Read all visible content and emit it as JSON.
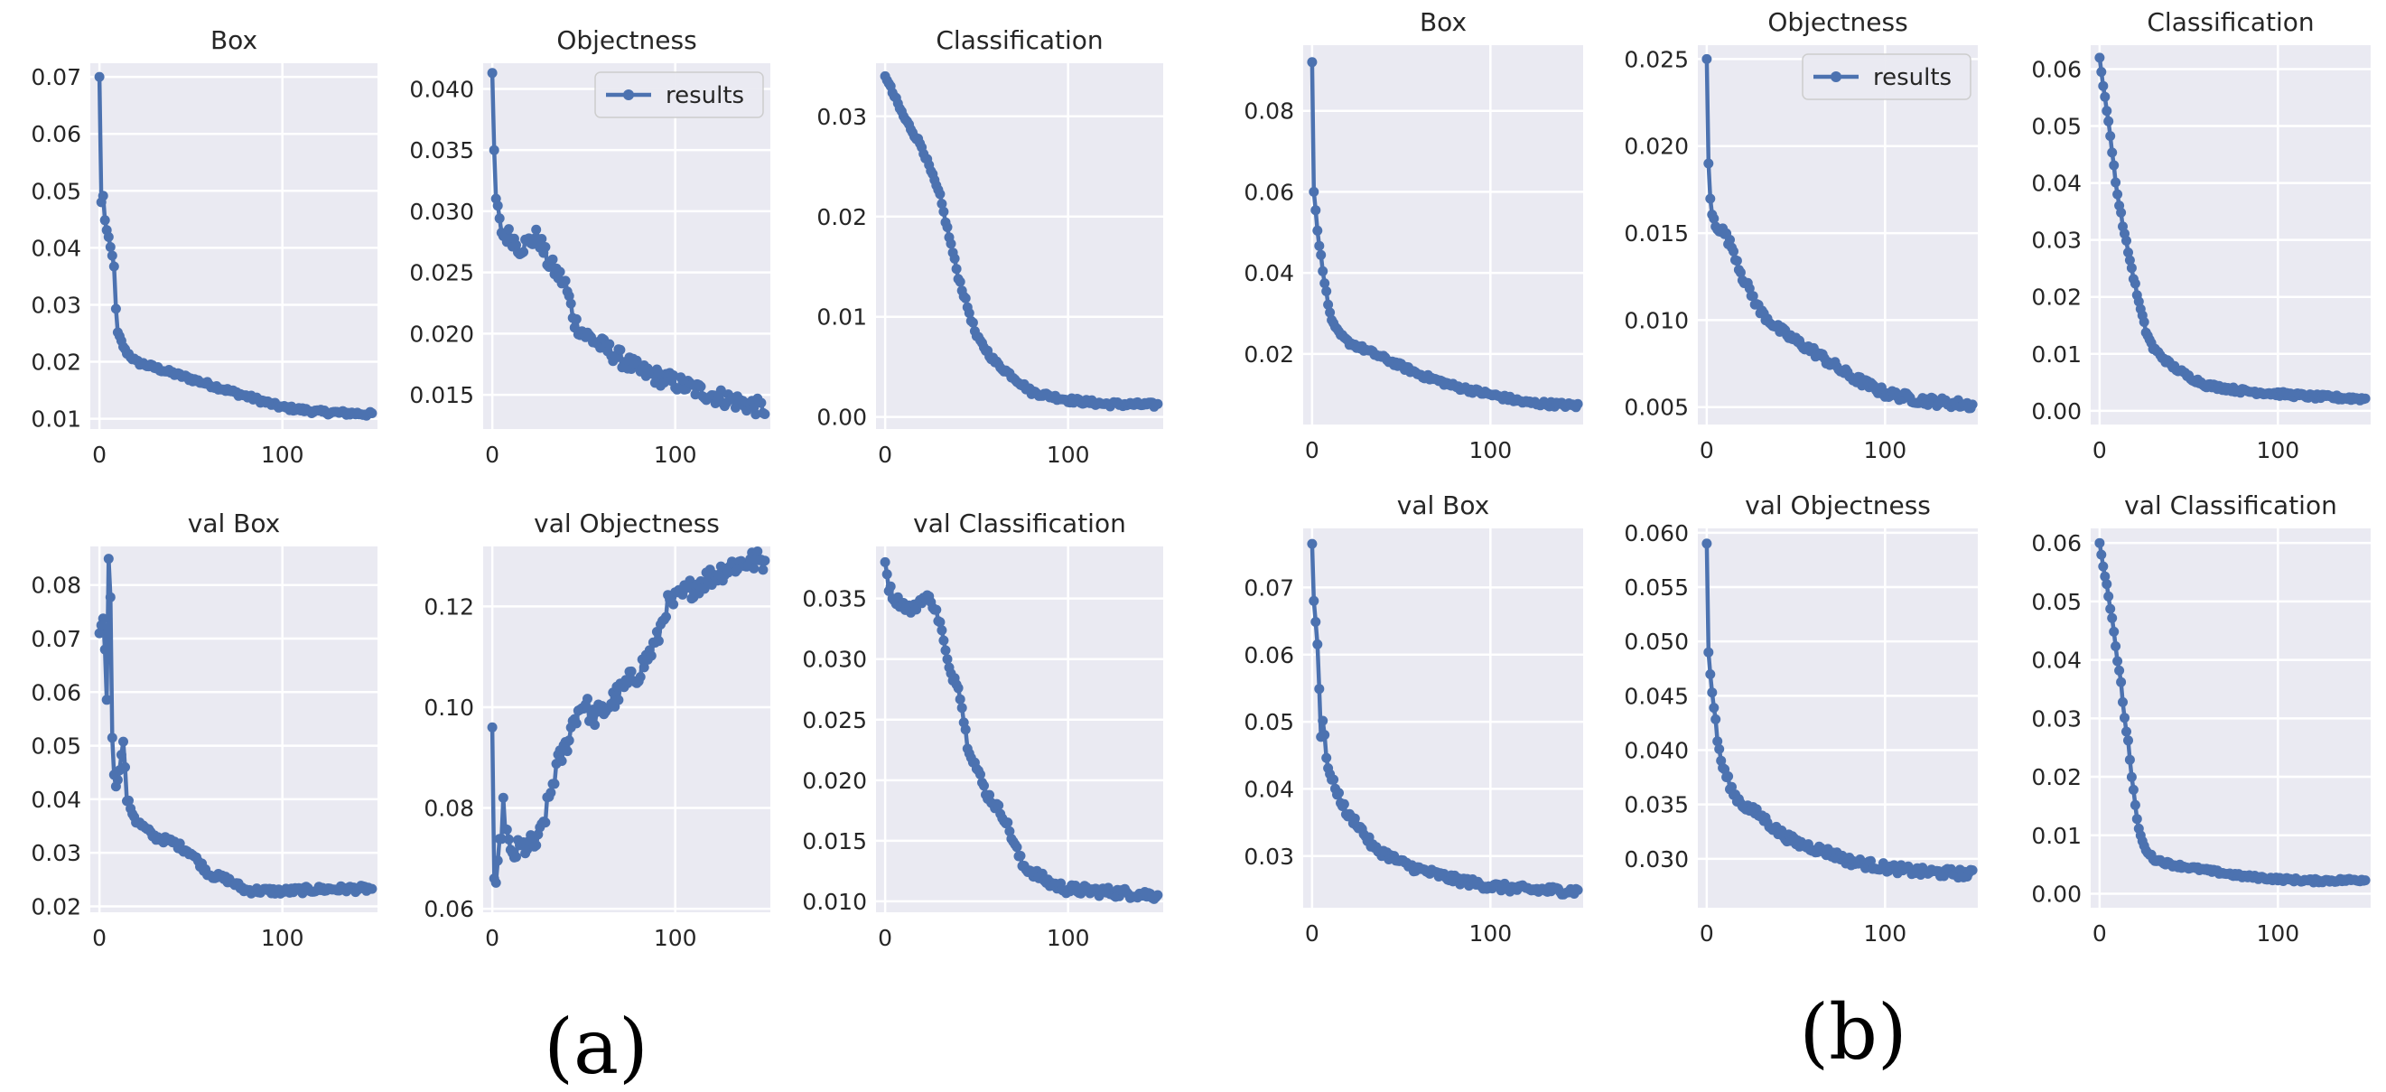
{
  "chart_data": [
    {
      "group": "a",
      "type": "line",
      "title": "Box",
      "legend": null,
      "xlim": [
        -5,
        152
      ],
      "xticks": [
        0,
        100
      ],
      "ylim": [
        0.0082,
        0.0724
      ],
      "yticks": [
        "0.01",
        "0.02",
        "0.03",
        "0.04",
        "0.05",
        "0.06",
        "0.07"
      ],
      "anchors": [
        [
          0,
          0.07
        ],
        [
          1,
          0.048
        ],
        [
          2,
          0.049
        ],
        [
          3,
          0.045
        ],
        [
          4,
          0.043
        ],
        [
          6,
          0.04
        ],
        [
          8,
          0.037
        ],
        [
          9,
          0.029
        ],
        [
          10,
          0.025
        ],
        [
          14,
          0.022
        ],
        [
          20,
          0.02
        ],
        [
          30,
          0.019
        ],
        [
          40,
          0.018
        ],
        [
          50,
          0.017
        ],
        [
          60,
          0.016
        ],
        [
          70,
          0.015
        ],
        [
          80,
          0.014
        ],
        [
          90,
          0.013
        ],
        [
          100,
          0.012
        ],
        [
          120,
          0.0112
        ],
        [
          150,
          0.0108
        ]
      ],
      "noise": 0.0004
    },
    {
      "group": "a",
      "type": "line",
      "title": "Objectness",
      "legend": "results",
      "xlim": [
        -5,
        152
      ],
      "xticks": [
        0,
        100
      ],
      "ylim": [
        0.0122,
        0.0421
      ],
      "yticks": [
        "0.015",
        "0.020",
        "0.025",
        "0.030",
        "0.035",
        "0.040"
      ],
      "anchors": [
        [
          0,
          0.0413
        ],
        [
          1,
          0.035
        ],
        [
          2,
          0.031
        ],
        [
          4,
          0.029
        ],
        [
          6,
          0.028
        ],
        [
          10,
          0.028
        ],
        [
          15,
          0.027
        ],
        [
          25,
          0.028
        ],
        [
          30,
          0.026
        ],
        [
          40,
          0.024
        ],
        [
          45,
          0.021
        ],
        [
          50,
          0.02
        ],
        [
          60,
          0.019
        ],
        [
          70,
          0.018
        ],
        [
          80,
          0.017
        ],
        [
          90,
          0.0165
        ],
        [
          100,
          0.016
        ],
        [
          120,
          0.015
        ],
        [
          150,
          0.0138
        ]
      ],
      "noise": 0.0007
    },
    {
      "group": "a",
      "type": "line",
      "title": "Classification",
      "legend": null,
      "xlim": [
        -5,
        152
      ],
      "xticks": [
        0,
        100
      ],
      "ylim": [
        -0.0012,
        0.0353
      ],
      "yticks": [
        "0.00",
        "0.01",
        "0.02",
        "0.03"
      ],
      "anchors": [
        [
          0,
          0.034
        ],
        [
          5,
          0.032
        ],
        [
          10,
          0.03
        ],
        [
          20,
          0.027
        ],
        [
          30,
          0.022
        ],
        [
          40,
          0.014
        ],
        [
          50,
          0.008
        ],
        [
          60,
          0.0055
        ],
        [
          70,
          0.004
        ],
        [
          80,
          0.0025
        ],
        [
          100,
          0.0017
        ],
        [
          120,
          0.0013
        ],
        [
          150,
          0.0012
        ]
      ],
      "noise": 0.00025
    },
    {
      "group": "a",
      "type": "line",
      "title": "val Box",
      "legend": null,
      "xlim": [
        -5,
        152
      ],
      "xticks": [
        0,
        100
      ],
      "ylim": [
        0.0189,
        0.0872
      ],
      "yticks": [
        "0.02",
        "0.03",
        "0.04",
        "0.05",
        "0.06",
        "0.07",
        "0.08"
      ],
      "anchors": [
        [
          0,
          0.071
        ],
        [
          2,
          0.074
        ],
        [
          3,
          0.068
        ],
        [
          4,
          0.059
        ],
        [
          5,
          0.0845
        ],
        [
          6,
          0.078
        ],
        [
          7,
          0.052
        ],
        [
          8,
          0.045
        ],
        [
          9,
          0.042
        ],
        [
          10,
          0.044
        ],
        [
          12,
          0.048
        ],
        [
          13,
          0.051
        ],
        [
          15,
          0.04
        ],
        [
          20,
          0.036
        ],
        [
          30,
          0.033
        ],
        [
          40,
          0.032
        ],
        [
          50,
          0.03
        ],
        [
          60,
          0.026
        ],
        [
          70,
          0.025
        ],
        [
          80,
          0.023
        ],
        [
          100,
          0.0228
        ],
        [
          120,
          0.0232
        ],
        [
          150,
          0.0233
        ]
      ],
      "noise": 0.0006
    },
    {
      "group": "a",
      "type": "line",
      "title": "val Objectness",
      "legend": null,
      "xlim": [
        -5,
        152
      ],
      "xticks": [
        0,
        100
      ],
      "ylim": [
        0.0593,
        0.1319
      ],
      "yticks": [
        "0.06",
        "0.08",
        "0.10",
        "0.12"
      ],
      "anchors": [
        [
          0,
          0.096
        ],
        [
          1,
          0.066
        ],
        [
          2,
          0.063
        ],
        [
          4,
          0.072
        ],
        [
          6,
          0.08
        ],
        [
          10,
          0.07
        ],
        [
          15,
          0.072
        ],
        [
          25,
          0.073
        ],
        [
          30,
          0.08
        ],
        [
          35,
          0.088
        ],
        [
          40,
          0.092
        ],
        [
          45,
          0.098
        ],
        [
          50,
          0.101
        ],
        [
          55,
          0.098
        ],
        [
          60,
          0.099
        ],
        [
          70,
          0.103
        ],
        [
          80,
          0.107
        ],
        [
          90,
          0.113
        ],
        [
          95,
          0.12
        ],
        [
          100,
          0.121
        ],
        [
          110,
          0.124
        ],
        [
          120,
          0.126
        ],
        [
          130,
          0.128
        ],
        [
          140,
          0.129
        ],
        [
          150,
          0.129
        ]
      ],
      "noise": 0.0022
    },
    {
      "group": "a",
      "type": "line",
      "title": "val Classification",
      "legend": null,
      "xlim": [
        -5,
        152
      ],
      "xticks": [
        0,
        100
      ],
      "ylim": [
        0.0091,
        0.0393
      ],
      "yticks": [
        "0.010",
        "0.015",
        "0.020",
        "0.025",
        "0.030",
        "0.035"
      ],
      "anchors": [
        [
          0,
          0.038
        ],
        [
          2,
          0.036
        ],
        [
          5,
          0.035
        ],
        [
          10,
          0.0345
        ],
        [
          15,
          0.034
        ],
        [
          20,
          0.035
        ],
        [
          25,
          0.035
        ],
        [
          30,
          0.033
        ],
        [
          35,
          0.029
        ],
        [
          40,
          0.028
        ],
        [
          45,
          0.023
        ],
        [
          50,
          0.021
        ],
        [
          55,
          0.019
        ],
        [
          60,
          0.018
        ],
        [
          65,
          0.017
        ],
        [
          70,
          0.015
        ],
        [
          75,
          0.013
        ],
        [
          80,
          0.0125
        ],
        [
          90,
          0.0115
        ],
        [
          100,
          0.011
        ],
        [
          120,
          0.0108
        ],
        [
          150,
          0.0105
        ]
      ],
      "noise": 0.0004
    },
    {
      "group": "b",
      "type": "line",
      "title": "Box",
      "legend": null,
      "xlim": [
        -5,
        152
      ],
      "xticks": [
        0,
        100
      ],
      "ylim": [
        0.0026,
        0.0962
      ],
      "yticks": [
        "0.02",
        "0.04",
        "0.06",
        "0.08"
      ],
      "anchors": [
        [
          0,
          0.092
        ],
        [
          1,
          0.06
        ],
        [
          2,
          0.056
        ],
        [
          3,
          0.05
        ],
        [
          5,
          0.044
        ],
        [
          7,
          0.038
        ],
        [
          9,
          0.032
        ],
        [
          12,
          0.027
        ],
        [
          15,
          0.025
        ],
        [
          20,
          0.023
        ],
        [
          30,
          0.021
        ],
        [
          40,
          0.019
        ],
        [
          50,
          0.017
        ],
        [
          60,
          0.015
        ],
        [
          80,
          0.012
        ],
        [
          100,
          0.01
        ],
        [
          120,
          0.008
        ],
        [
          150,
          0.0072
        ]
      ],
      "noise": 0.0006
    },
    {
      "group": "b",
      "type": "line",
      "title": "Objectness",
      "legend": "results",
      "xlim": [
        -5,
        152
      ],
      "xticks": [
        0,
        100
      ],
      "ylim": [
        0.004,
        0.0258
      ],
      "yticks": [
        "0.005",
        "0.010",
        "0.015",
        "0.020",
        "0.025"
      ],
      "anchors": [
        [
          0,
          0.025
        ],
        [
          1,
          0.019
        ],
        [
          2,
          0.017
        ],
        [
          3,
          0.016
        ],
        [
          5,
          0.0155
        ],
        [
          10,
          0.015
        ],
        [
          15,
          0.014
        ],
        [
          20,
          0.0125
        ],
        [
          25,
          0.0115
        ],
        [
          30,
          0.0105
        ],
        [
          40,
          0.0095
        ],
        [
          50,
          0.0088
        ],
        [
          60,
          0.0082
        ],
        [
          70,
          0.0075
        ],
        [
          80,
          0.0068
        ],
        [
          90,
          0.0063
        ],
        [
          100,
          0.0058
        ],
        [
          110,
          0.0056
        ],
        [
          120,
          0.0054
        ],
        [
          130,
          0.0053
        ],
        [
          150,
          0.0051
        ]
      ],
      "noise": 0.00025
    },
    {
      "group": "b",
      "type": "line",
      "title": "Classification",
      "legend": null,
      "xlim": [
        -5,
        152
      ],
      "xticks": [
        0,
        100
      ],
      "ylim": [
        -0.0024,
        0.0642
      ],
      "yticks": [
        "0.00",
        "0.01",
        "0.02",
        "0.03",
        "0.04",
        "0.05",
        "0.06"
      ],
      "anchors": [
        [
          0,
          0.062
        ],
        [
          2,
          0.057
        ],
        [
          4,
          0.053
        ],
        [
          6,
          0.048
        ],
        [
          8,
          0.043
        ],
        [
          10,
          0.038
        ],
        [
          14,
          0.031
        ],
        [
          18,
          0.025
        ],
        [
          22,
          0.019
        ],
        [
          26,
          0.014
        ],
        [
          30,
          0.011
        ],
        [
          40,
          0.008
        ],
        [
          50,
          0.006
        ],
        [
          60,
          0.0045
        ],
        [
          80,
          0.0035
        ],
        [
          100,
          0.003
        ],
        [
          120,
          0.0025
        ],
        [
          150,
          0.0021
        ]
      ],
      "noise": 0.0004
    },
    {
      "group": "b",
      "type": "line",
      "title": "val Box",
      "legend": null,
      "xlim": [
        -5,
        152
      ],
      "xticks": [
        0,
        100
      ],
      "ylim": [
        0.0223,
        0.0788
      ],
      "yticks": [
        "0.03",
        "0.04",
        "0.05",
        "0.06",
        "0.07"
      ],
      "anchors": [
        [
          0,
          0.0765
        ],
        [
          1,
          0.068
        ],
        [
          2,
          0.065
        ],
        [
          3,
          0.062
        ],
        [
          5,
          0.048
        ],
        [
          6,
          0.05
        ],
        [
          8,
          0.045
        ],
        [
          10,
          0.042
        ],
        [
          15,
          0.039
        ],
        [
          20,
          0.036
        ],
        [
          25,
          0.035
        ],
        [
          30,
          0.033
        ],
        [
          35,
          0.031
        ],
        [
          40,
          0.0305
        ],
        [
          50,
          0.029
        ],
        [
          60,
          0.028
        ],
        [
          80,
          0.0265
        ],
        [
          100,
          0.0255
        ],
        [
          120,
          0.025
        ],
        [
          150,
          0.0248
        ]
      ],
      "noise": 0.0006
    },
    {
      "group": "b",
      "type": "line",
      "title": "val Objectness",
      "legend": null,
      "xlim": [
        -5,
        152
      ],
      "xticks": [
        0,
        100
      ],
      "ylim": [
        0.0255,
        0.0604
      ],
      "yticks": [
        "0.030",
        "0.035",
        "0.040",
        "0.045",
        "0.050",
        "0.055",
        "0.060"
      ],
      "anchors": [
        [
          0,
          0.059
        ],
        [
          1,
          0.049
        ],
        [
          2,
          0.047
        ],
        [
          4,
          0.044
        ],
        [
          6,
          0.041
        ],
        [
          8,
          0.039
        ],
        [
          10,
          0.038
        ],
        [
          15,
          0.036
        ],
        [
          20,
          0.035
        ],
        [
          30,
          0.034
        ],
        [
          40,
          0.0325
        ],
        [
          50,
          0.0315
        ],
        [
          60,
          0.031
        ],
        [
          70,
          0.0305
        ],
        [
          80,
          0.0298
        ],
        [
          100,
          0.0292
        ],
        [
          120,
          0.0288
        ],
        [
          150,
          0.0286
        ]
      ],
      "noise": 0.0004
    },
    {
      "group": "b",
      "type": "line",
      "title": "val Classification",
      "legend": null,
      "xlim": [
        -5,
        152
      ],
      "xticks": [
        0,
        100
      ],
      "ylim": [
        -0.0024,
        0.0625
      ],
      "yticks": [
        "0.00",
        "0.01",
        "0.02",
        "0.03",
        "0.04",
        "0.05",
        "0.06"
      ],
      "anchors": [
        [
          0,
          0.06
        ],
        [
          2,
          0.056
        ],
        [
          4,
          0.053
        ],
        [
          6,
          0.049
        ],
        [
          8,
          0.045
        ],
        [
          10,
          0.04
        ],
        [
          12,
          0.036
        ],
        [
          14,
          0.03
        ],
        [
          16,
          0.026
        ],
        [
          18,
          0.02
        ],
        [
          20,
          0.015
        ],
        [
          22,
          0.011
        ],
        [
          25,
          0.008
        ],
        [
          30,
          0.006
        ],
        [
          40,
          0.005
        ],
        [
          60,
          0.004
        ],
        [
          80,
          0.003
        ],
        [
          100,
          0.0025
        ],
        [
          120,
          0.0022
        ],
        [
          150,
          0.0024
        ]
      ],
      "noise": 0.0003
    }
  ],
  "subfigure_labels": {
    "a": "(a)",
    "b": "(b)"
  },
  "style": {
    "axes_bg": "#eaeaf2",
    "grid": "#ffffff",
    "line": "#4c72b0",
    "text": "#262626"
  }
}
